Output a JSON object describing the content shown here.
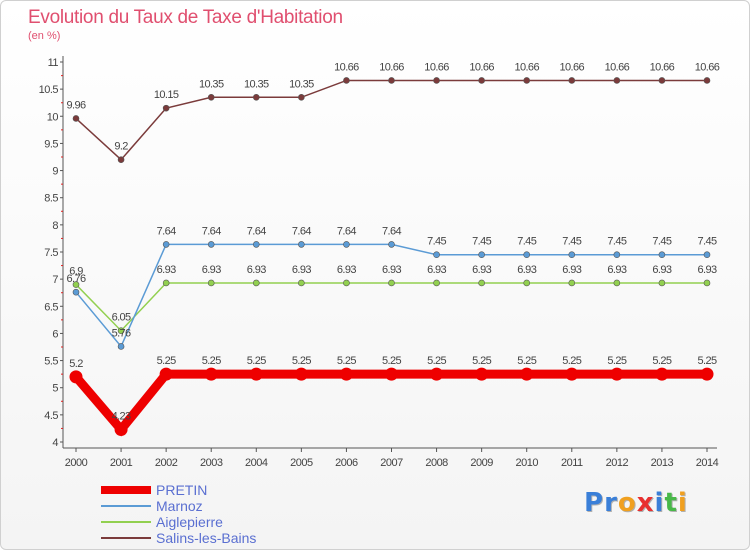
{
  "title": "Evolution du Taux de Taxe d'Habitation",
  "subtitle": "(en %)",
  "logo": {
    "letters": [
      {
        "char": "P",
        "color": "#3a7fd8"
      },
      {
        "char": "r",
        "color": "#3a7fd8"
      },
      {
        "char": "o",
        "color": "#f0a020"
      },
      {
        "char": "x",
        "color": "#e83030"
      },
      {
        "char": "i",
        "color": "#3a7fd8"
      },
      {
        "char": "t",
        "color": "#48b848"
      },
      {
        "char": "i",
        "color": "#f0a020"
      }
    ]
  },
  "chart_data": {
    "type": "line",
    "title": "Evolution du Taux de Taxe d'Habitation",
    "ylabel": "(en %)",
    "xlabel": "",
    "x": [
      "2000",
      "2001",
      "2002",
      "2003",
      "2004",
      "2005",
      "2006",
      "2007",
      "2008",
      "2009",
      "2010",
      "2011",
      "2012",
      "2013",
      "2014"
    ],
    "ylim": [
      4,
      11
    ],
    "yticks": [
      "4",
      "4.5",
      "5",
      "5.5",
      "6",
      "6.5",
      "7",
      "7.5",
      "8",
      "8.5",
      "9",
      "9.5",
      "10",
      "10.5",
      "11"
    ],
    "grid": false,
    "legend_position": "bottom-left",
    "series": [
      {
        "name": "PRETIN",
        "color": "#ee0000",
        "values": [
          5.2,
          4.23,
          5.25,
          5.25,
          5.25,
          5.25,
          5.25,
          5.25,
          5.25,
          5.25,
          5.25,
          5.25,
          5.25,
          5.25,
          5.25
        ],
        "labels": [
          "5.2",
          "4.23",
          "5.25",
          "5.25",
          "5.25",
          "5.25",
          "5.25",
          "5.25",
          "5.25",
          "5.25",
          "5.25",
          "5.25",
          "5.25",
          "5.25",
          "5.25"
        ]
      },
      {
        "name": "Marnoz",
        "color": "#5b9bd5",
        "values": [
          6.76,
          5.76,
          7.64,
          7.64,
          7.64,
          7.64,
          7.64,
          7.64,
          7.45,
          7.45,
          7.45,
          7.45,
          7.45,
          7.45,
          7.45
        ],
        "labels": [
          "6.76",
          "5.76",
          "7.64",
          "7.64",
          "7.64",
          "7.64",
          "7.64",
          "7.64",
          "7.45",
          "7.45",
          "7.45",
          "7.45",
          "7.45",
          "7.45",
          "7.45"
        ]
      },
      {
        "name": "Aiglepierre",
        "color": "#92d050",
        "values": [
          6.9,
          6.05,
          6.93,
          6.93,
          6.93,
          6.93,
          6.93,
          6.93,
          6.93,
          6.93,
          6.93,
          6.93,
          6.93,
          6.93,
          6.93
        ],
        "labels": [
          "6.9",
          "6.05",
          "6.93",
          "6.93",
          "6.93",
          "6.93",
          "6.93",
          "6.93",
          "6.93",
          "6.93",
          "6.93",
          "6.93",
          "6.93",
          "6.93",
          "6.93"
        ]
      },
      {
        "name": "Salins-les-Bains",
        "color": "#7b3b3b",
        "values": [
          9.96,
          9.2,
          10.15,
          10.35,
          10.35,
          10.35,
          10.66,
          10.66,
          10.66,
          10.66,
          10.66,
          10.66,
          10.66,
          10.66,
          10.66
        ],
        "labels": [
          "9.96",
          "9.2",
          "10.15",
          "10.35",
          "10.35",
          "10.35",
          "10.66",
          "10.66",
          "10.66",
          "10.66",
          "10.66",
          "10.66",
          "10.66",
          "10.66",
          "10.66"
        ]
      }
    ]
  }
}
